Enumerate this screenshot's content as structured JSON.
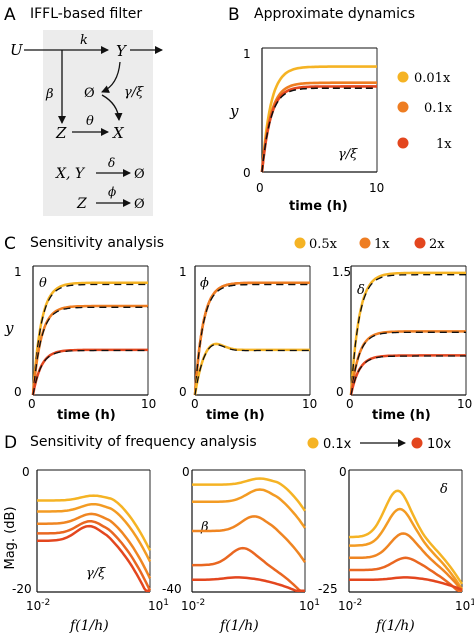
{
  "colors": {
    "yellow": "#f5b324",
    "orange": "#ee7d22",
    "red": "#e3461e",
    "dash": "#111111",
    "panel_bg": "#ececec"
  },
  "panel_A": {
    "letter": "A",
    "title": "IFFL-based filter",
    "nodes": {
      "U": "U",
      "Y": "Y",
      "Z": "Z",
      "X": "X",
      "empty": "Ø"
    },
    "edges": {
      "k": "k",
      "beta": "β",
      "theta": "θ",
      "gamma_xi": "γ/ξ",
      "delta": "δ",
      "phi": "ϕ"
    },
    "reactions": {
      "r1_left": "X, Y",
      "r1_right": "Ø",
      "r2_left": "Z",
      "r2_right": "Ø"
    }
  },
  "panel_B": {
    "letter": "B",
    "title": "Approximate dynamics",
    "ylabel": "y",
    "xlabel": "time (h)",
    "annotation": "γ/ξ",
    "yticks": [
      "0",
      "1"
    ],
    "xticks": [
      "0",
      "10"
    ],
    "legend": [
      "0.01x",
      "0.1x",
      "1x"
    ]
  },
  "panel_C": {
    "letter": "C",
    "title": "Sensitivity analysis",
    "ylabel": "y",
    "xlabel": "time (h)",
    "legend": [
      "0.5x",
      "1x",
      "2x"
    ],
    "plots": [
      {
        "param": "θ",
        "yticks": [
          "0",
          "1"
        ],
        "xticks": [
          "0",
          "10"
        ]
      },
      {
        "param": "ϕ",
        "yticks": [
          "0",
          "1"
        ],
        "xticks": [
          "0",
          "10"
        ]
      },
      {
        "param": "δ",
        "yticks": [
          "0",
          "1.5"
        ],
        "xticks": [
          "0",
          "10"
        ]
      }
    ]
  },
  "panel_D": {
    "letter": "D",
    "title": "Sensitivity of frequency analysis",
    "legend_from": "0.1x",
    "legend_to": "10x",
    "ylabel": "Mag. (dB)",
    "xlabel": "f(1/h)",
    "plots": [
      {
        "param": "γ/ξ",
        "yticks": [
          "0",
          "-20"
        ],
        "xticks": [
          "10-2",
          "101"
        ]
      },
      {
        "param": "β",
        "yticks": [
          "0",
          "-40"
        ],
        "xticks": [
          "10-2",
          "101"
        ]
      },
      {
        "param": "δ",
        "yticks": [
          "0",
          "-25"
        ],
        "xticks": [
          "10-2",
          "101"
        ]
      }
    ]
  },
  "chart_data": [
    {
      "type": "line",
      "panel": "B",
      "ylim": [
        0,
        1
      ],
      "xlim": [
        0,
        10
      ],
      "series": [
        {
          "name": "0.01x",
          "final_y": 0.85
        },
        {
          "name": "0.1x",
          "final_y": 0.72
        },
        {
          "name": "1x",
          "final_y": 0.69
        }
      ]
    },
    {
      "type": "line",
      "panel": "C-θ",
      "ylim": [
        0,
        1
      ],
      "xlim": [
        0,
        10
      ],
      "finals": [
        0.87,
        0.69,
        0.35
      ]
    },
    {
      "type": "line",
      "panel": "C-ϕ",
      "ylim": [
        0,
        1
      ],
      "xlim": [
        0,
        10
      ],
      "finals": [
        0.87,
        0.87,
        0.35
      ]
    },
    {
      "type": "line",
      "panel": "C-δ",
      "ylim": [
        0,
        1.5
      ],
      "xlim": [
        0,
        10
      ],
      "finals": [
        1.42,
        0.74,
        0.46
      ]
    }
  ]
}
